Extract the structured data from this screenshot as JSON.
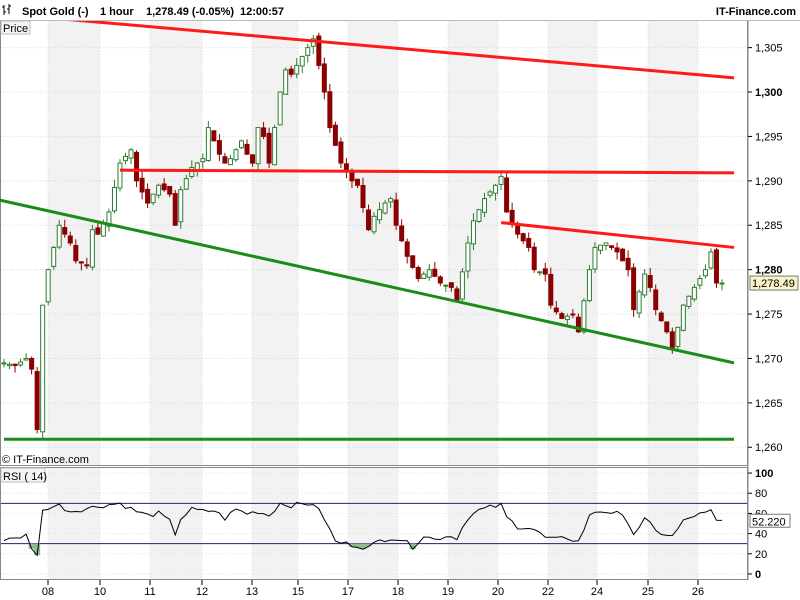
{
  "header": {
    "instrument": "Spot Gold (-)",
    "timeframe": "1 hour",
    "last_change": "1,278.49 (-0.05%)",
    "time": "12:00:57",
    "brand": "IT-Finance.com"
  },
  "price_panel": {
    "label": "Price",
    "watermark": "© IT-Finance.com",
    "current_price_tag": "1,278.49"
  },
  "rsi_panel": {
    "label": "RSI ( 14)",
    "current_value_tag": "52.220"
  },
  "colors": {
    "up_candle": "#2e7d32",
    "down_candle": "#8b0000",
    "resistance_line": "#ff1a1a",
    "support_line": "#1a8c1a",
    "rsi_line": "#000000",
    "rsi_band": "#1a237e",
    "oversold_fill": "#8fbc8f",
    "shade_band": "#f2f2f2"
  },
  "chart_data": [
    {
      "type": "candlestick",
      "title": "",
      "ylabel": "",
      "ylim": [
        1258,
        1308
      ],
      "y_ticks": [
        1260,
        1265,
        1270,
        1275,
        1280,
        1285,
        1290,
        1295,
        1300,
        1305
      ],
      "y_tick_labels": [
        "1,260",
        "1,265",
        "1,270",
        "1,275",
        "1,280",
        "1,285",
        "1,290",
        "1,295",
        "1,300",
        "1,305"
      ],
      "y_tick_bold": [
        false,
        false,
        false,
        false,
        true,
        false,
        false,
        false,
        true,
        false
      ],
      "x_tick_labels": [
        "08",
        "10",
        "11",
        "12",
        "13",
        "15",
        "17",
        "18",
        "19",
        "20",
        "22",
        "24",
        "25",
        "26"
      ],
      "last_price": 1278.49,
      "close_path": [
        [
          0,
          1269.5
        ],
        [
          2,
          1269.2
        ],
        [
          4,
          1270.0
        ],
        [
          5,
          1268.8
        ],
        [
          6,
          1262.0
        ],
        [
          7,
          1276.0
        ],
        [
          8,
          1280.0
        ],
        [
          10,
          1285.0
        ],
        [
          12,
          1283.0
        ],
        [
          13,
          1281.0
        ],
        [
          15,
          1280.5
        ],
        [
          16,
          1284.5
        ],
        [
          17,
          1284.0
        ],
        [
          19,
          1286.5
        ],
        [
          21,
          1292.0
        ],
        [
          23,
          1293.5
        ],
        [
          24,
          1290.0
        ],
        [
          26,
          1287.5
        ],
        [
          28,
          1289.5
        ],
        [
          30,
          1288.5
        ],
        [
          31,
          1285.0
        ],
        [
          32,
          1289.0
        ],
        [
          34,
          1291.5
        ],
        [
          36,
          1292.5
        ],
        [
          37,
          1296.0
        ],
        [
          39,
          1293.0
        ],
        [
          40,
          1292.0
        ],
        [
          41,
          1292.5
        ],
        [
          43,
          1294.5
        ],
        [
          44,
          1293.0
        ],
        [
          45,
          1292.0
        ],
        [
          46,
          1296.0
        ],
        [
          47,
          1295.0
        ],
        [
          48,
          1292.0
        ],
        [
          50,
          1300.0
        ],
        [
          51,
          1302.5
        ],
        [
          52,
          1302.0
        ],
        [
          54,
          1304.0
        ],
        [
          55,
          1305.0
        ],
        [
          56,
          1306.0
        ],
        [
          57,
          1303.0
        ],
        [
          58,
          1300.0
        ],
        [
          59,
          1296.0
        ],
        [
          60,
          1294.0
        ],
        [
          61,
          1292.0
        ],
        [
          62,
          1291.0
        ],
        [
          63,
          1290.0
        ],
        [
          64,
          1289.5
        ],
        [
          65,
          1287.0
        ],
        [
          66,
          1284.5
        ],
        [
          67,
          1286.0
        ],
        [
          69,
          1287.5
        ],
        [
          70,
          1288.0
        ],
        [
          71,
          1285.0
        ],
        [
          73,
          1281.5
        ],
        [
          75,
          1279.0
        ],
        [
          77,
          1280.0
        ],
        [
          79,
          1278.5
        ],
        [
          81,
          1278.0
        ],
        [
          82,
          1276.5
        ],
        [
          84,
          1283.0
        ],
        [
          85,
          1285.5
        ],
        [
          87,
          1288.0
        ],
        [
          89,
          1289.5
        ],
        [
          90,
          1290.5
        ],
        [
          91,
          1286.5
        ],
        [
          93,
          1284.0
        ],
        [
          95,
          1282.5
        ],
        [
          96,
          1280.0
        ],
        [
          98,
          1279.5
        ],
        [
          99,
          1276.0
        ],
        [
          101,
          1274.5
        ],
        [
          103,
          1275.0
        ],
        [
          104,
          1273.0
        ],
        [
          106,
          1280.0
        ],
        [
          107,
          1282.5
        ],
        [
          109,
          1283.0
        ],
        [
          111,
          1282.0
        ],
        [
          113,
          1280.0
        ],
        [
          114,
          1275.5
        ],
        [
          116,
          1279.5
        ],
        [
          117,
          1278.0
        ],
        [
          118,
          1275.5
        ],
        [
          120,
          1273.0
        ],
        [
          121,
          1271.0
        ],
        [
          123,
          1276.0
        ],
        [
          125,
          1278.0
        ],
        [
          127,
          1280.0
        ],
        [
          128,
          1282.0
        ],
        [
          129,
          1278.5
        ],
        [
          130,
          1278.49
        ]
      ],
      "lines": [
        {
          "name": "",
          "color": "#ff1a1a",
          "from": [
            0,
            1308.8
          ],
          "to": [
            130,
            1301.6
          ]
        },
        {
          "name": "",
          "color": "#ff1a1a",
          "from": [
            21,
            1291.2
          ],
          "to": [
            130,
            1290.9
          ]
        },
        {
          "name": "",
          "color": "#ff1a1a",
          "from": [
            90,
            1285.3
          ],
          "to": [
            130,
            1282.5
          ]
        },
        {
          "name": "",
          "color": "#1a8c1a",
          "from": [
            -2,
            1288.0
          ],
          "to": [
            130,
            1269.5
          ]
        },
        {
          "name": "",
          "color": "#1a8c1a",
          "from": [
            0,
            1260.9
          ],
          "to": [
            130,
            1260.9
          ]
        }
      ]
    },
    {
      "type": "line",
      "title": "",
      "ylabel": "",
      "ylim": [
        -5,
        105
      ],
      "y_ticks": [
        100,
        80,
        60,
        40,
        20,
        0
      ],
      "y_tick_labels": [
        "100",
        "80",
        "60",
        "40",
        "20",
        "0"
      ],
      "y_tick_bold": [
        true,
        false,
        false,
        false,
        false,
        true
      ],
      "bands": [
        70,
        30
      ],
      "last_value": 52.22,
      "values": [
        [
          0,
          35
        ],
        [
          2,
          36
        ],
        [
          4,
          38
        ],
        [
          5,
          24
        ],
        [
          6,
          20
        ],
        [
          7,
          62
        ],
        [
          8,
          66
        ],
        [
          10,
          68
        ],
        [
          12,
          62
        ],
        [
          14,
          64
        ],
        [
          16,
          66
        ],
        [
          18,
          68
        ],
        [
          21,
          70
        ],
        [
          24,
          62
        ],
        [
          26,
          58
        ],
        [
          28,
          60
        ],
        [
          30,
          52
        ],
        [
          31,
          40
        ],
        [
          32,
          55
        ],
        [
          34,
          64
        ],
        [
          36,
          62
        ],
        [
          38,
          63
        ],
        [
          40,
          55
        ],
        [
          42,
          64
        ],
        [
          44,
          60
        ],
        [
          46,
          62
        ],
        [
          48,
          58
        ],
        [
          50,
          70
        ],
        [
          52,
          68
        ],
        [
          54,
          69
        ],
        [
          56,
          70
        ],
        [
          58,
          55
        ],
        [
          60,
          32
        ],
        [
          62,
          30
        ],
        [
          64,
          28
        ],
        [
          66,
          26
        ],
        [
          68,
          33
        ],
        [
          70,
          36
        ],
        [
          72,
          34
        ],
        [
          74,
          27
        ],
        [
          76,
          38
        ],
        [
          78,
          34
        ],
        [
          80,
          38
        ],
        [
          82,
          36
        ],
        [
          84,
          56
        ],
        [
          86,
          63
        ],
        [
          88,
          66
        ],
        [
          90,
          68
        ],
        [
          91,
          56
        ],
        [
          93,
          47
        ],
        [
          95,
          46
        ],
        [
          96,
          44
        ],
        [
          98,
          36
        ],
        [
          100,
          34
        ],
        [
          102,
          36
        ],
        [
          104,
          32
        ],
        [
          106,
          57
        ],
        [
          107,
          62
        ],
        [
          109,
          62
        ],
        [
          111,
          60
        ],
        [
          113,
          52
        ],
        [
          114,
          40
        ],
        [
          116,
          54
        ],
        [
          117,
          49
        ],
        [
          118,
          42
        ],
        [
          120,
          39
        ],
        [
          121,
          37
        ],
        [
          123,
          52
        ],
        [
          125,
          58
        ],
        [
          127,
          60
        ],
        [
          128,
          62
        ],
        [
          129,
          52
        ],
        [
          130,
          52.22
        ]
      ]
    }
  ]
}
